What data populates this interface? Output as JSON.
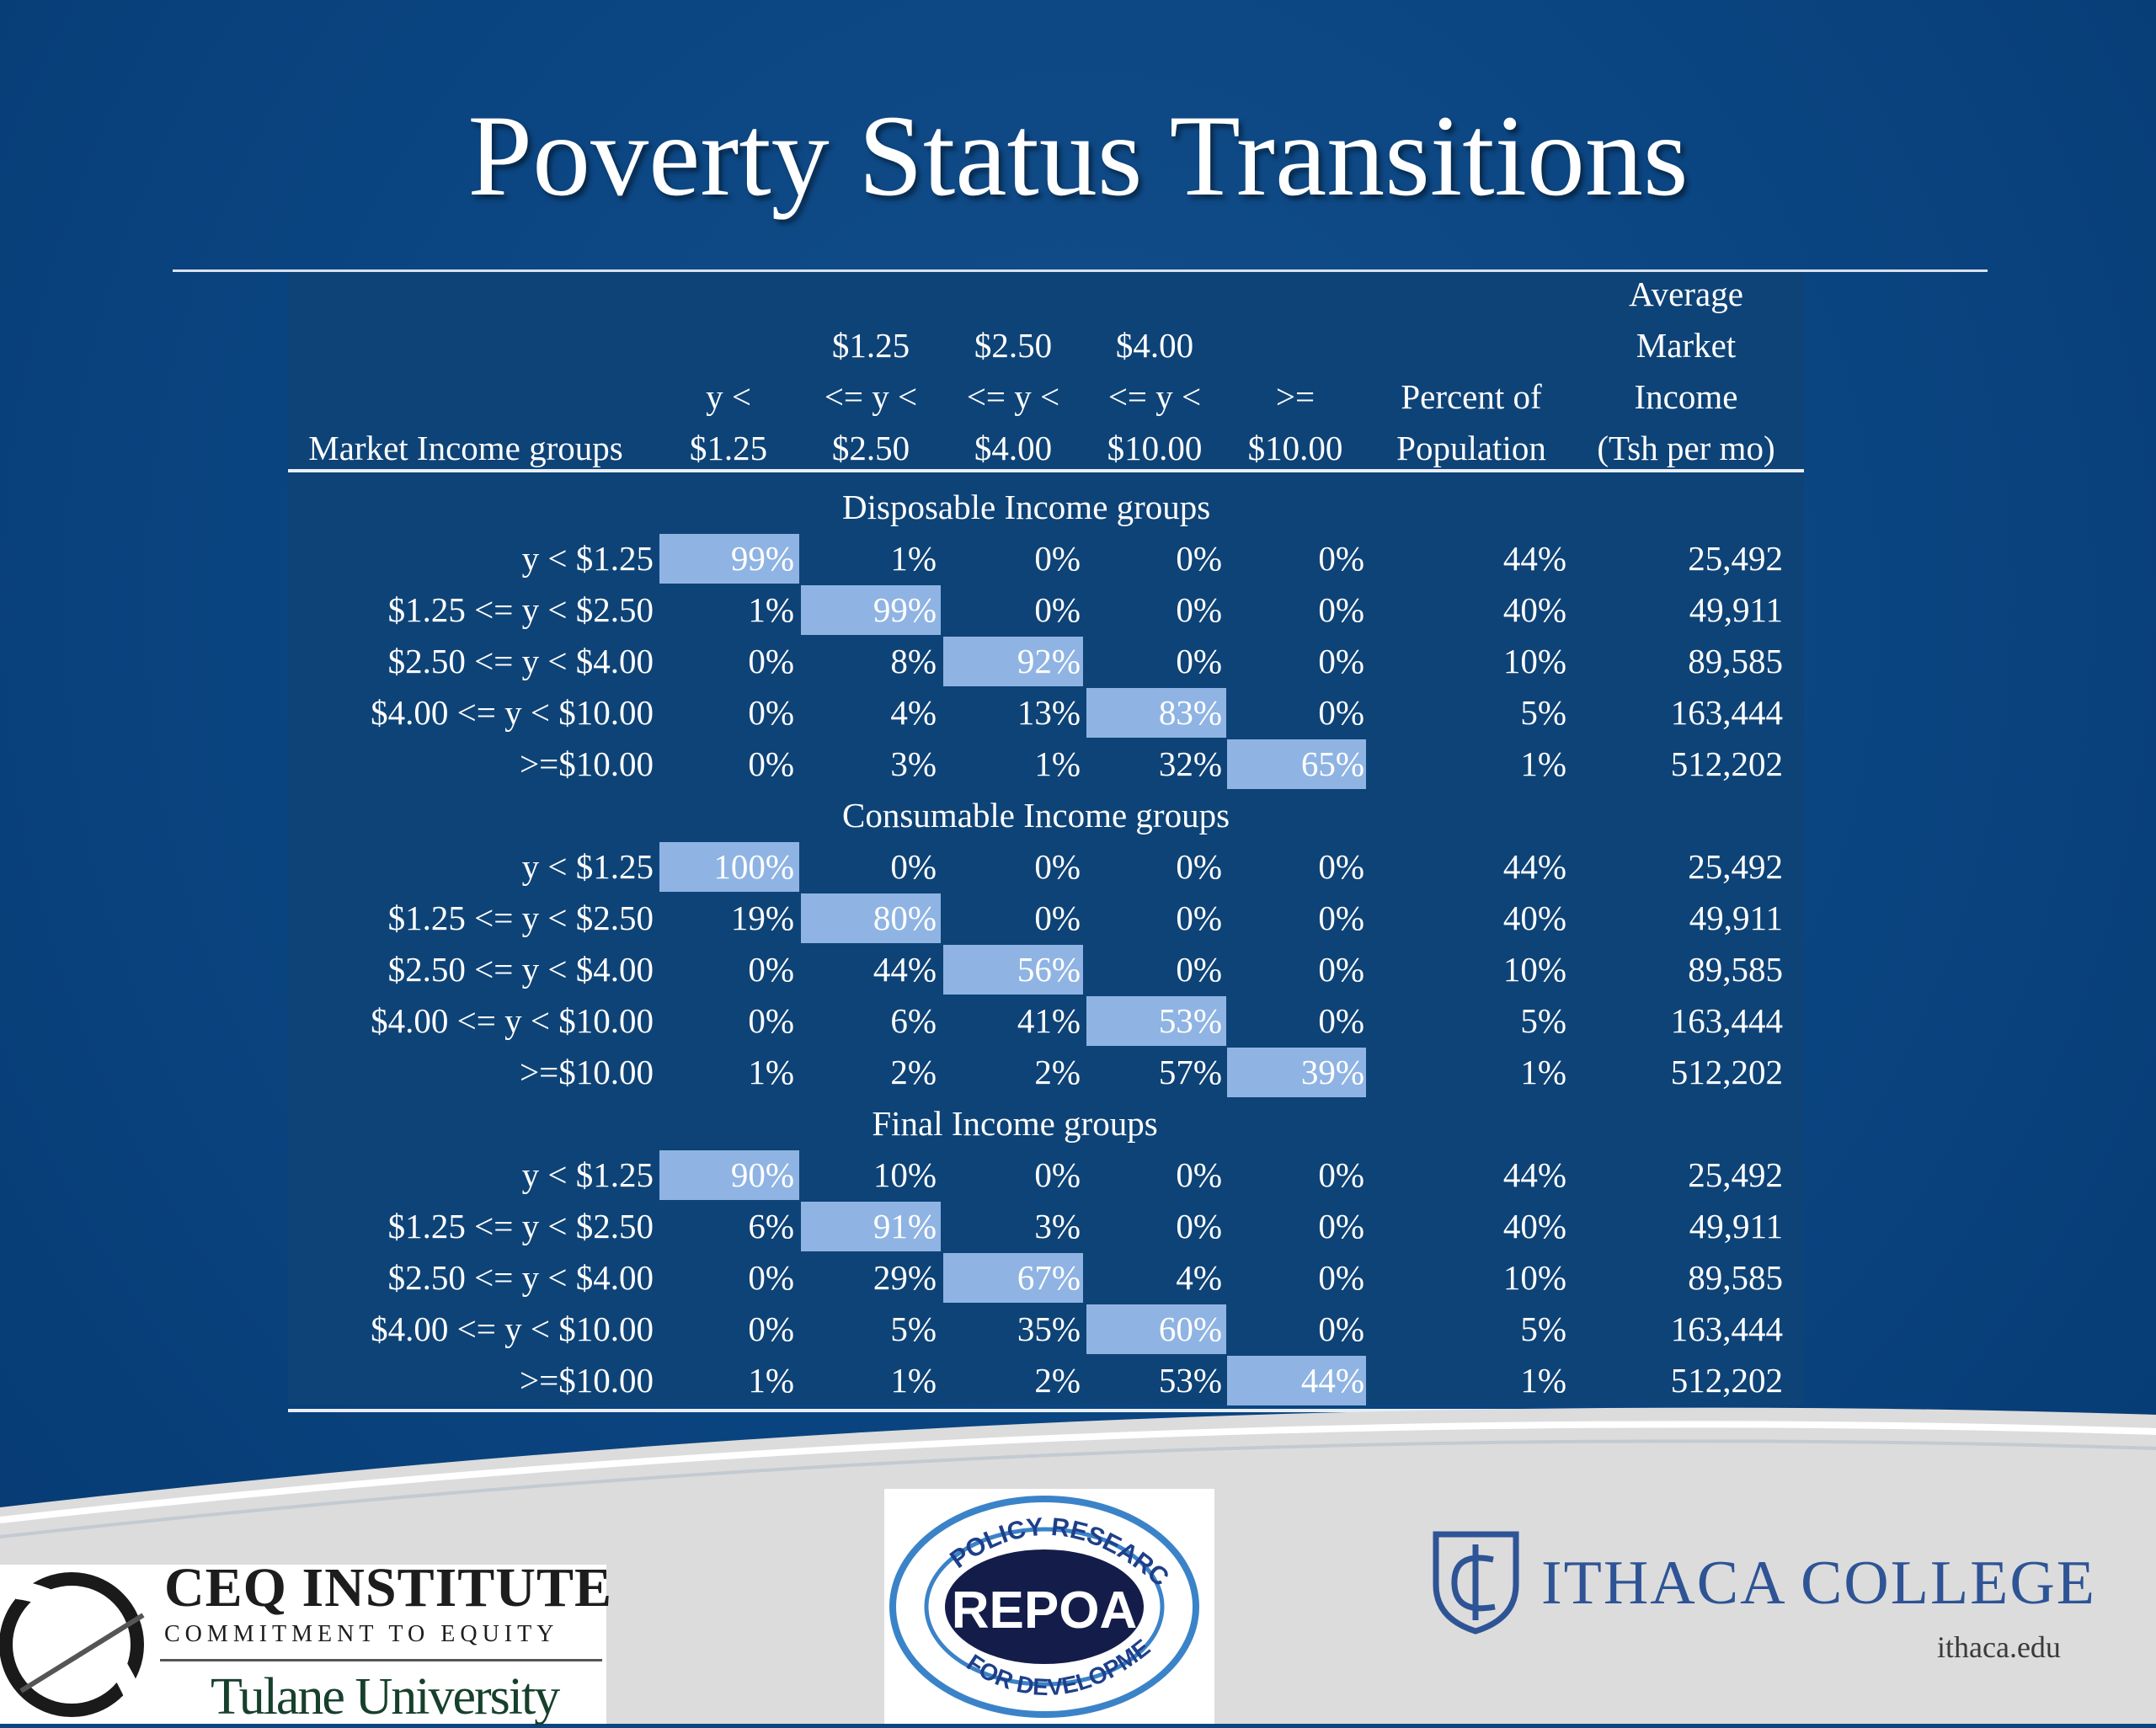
{
  "title": "Poverty Status Transitions",
  "colors": {
    "background": "#0b4681",
    "highlight": "#8fb4e3",
    "table_bg": "#0e4377"
  },
  "table": {
    "col_headers": [
      [
        "Market Income groups"
      ],
      [
        "y <",
        "$1.25"
      ],
      [
        "$1.25",
        "<= y <",
        "$2.50"
      ],
      [
        "$2.50",
        "<= y <",
        "$4.00"
      ],
      [
        "$4.00",
        "<= y <",
        "$10.00"
      ],
      [
        ">=",
        "$10.00"
      ],
      [
        "Percent of",
        "Population"
      ],
      [
        "Average",
        "Market",
        "Income",
        "(Tsh per mo)"
      ]
    ],
    "row_labels": [
      "y < $1.25",
      "$1.25 <= y < $2.50",
      "$2.50 <= y < $4.00",
      "$4.00 <= y < $10.00",
      ">=$10.00"
    ],
    "sections": [
      {
        "name": "Disposable Income groups",
        "rows": [
          [
            "99%",
            "1%",
            "0%",
            "0%",
            "0%",
            "44%",
            "25,492"
          ],
          [
            "1%",
            "99%",
            "0%",
            "0%",
            "0%",
            "40%",
            "49,911"
          ],
          [
            "0%",
            "8%",
            "92%",
            "0%",
            "0%",
            "10%",
            "89,585"
          ],
          [
            "0%",
            "4%",
            "13%",
            "83%",
            "0%",
            "5%",
            "163,444"
          ],
          [
            "0%",
            "3%",
            "1%",
            "32%",
            "65%",
            "1%",
            "512,202"
          ]
        ]
      },
      {
        "name": "Consumable Income groups",
        "rows": [
          [
            "100%",
            "0%",
            "0%",
            "0%",
            "0%",
            "44%",
            "25,492"
          ],
          [
            "19%",
            "80%",
            "0%",
            "0%",
            "0%",
            "40%",
            "49,911"
          ],
          [
            "0%",
            "44%",
            "56%",
            "0%",
            "0%",
            "10%",
            "89,585"
          ],
          [
            "0%",
            "6%",
            "41%",
            "53%",
            "0%",
            "5%",
            "163,444"
          ],
          [
            "1%",
            "2%",
            "2%",
            "57%",
            "39%",
            "1%",
            "512,202"
          ]
        ]
      },
      {
        "name": "Final Income groups",
        "rows": [
          [
            "90%",
            "10%",
            "0%",
            "0%",
            "0%",
            "44%",
            "25,492"
          ],
          [
            "6%",
            "91%",
            "3%",
            "0%",
            "0%",
            "40%",
            "49,911"
          ],
          [
            "0%",
            "29%",
            "67%",
            "4%",
            "0%",
            "10%",
            "89,585"
          ],
          [
            "0%",
            "5%",
            "35%",
            "60%",
            "0%",
            "5%",
            "163,444"
          ],
          [
            "1%",
            "1%",
            "2%",
            "53%",
            "44%",
            "1%",
            "512,202"
          ]
        ]
      }
    ]
  },
  "logos": {
    "ceq_name": "CEQ INSTITUTE",
    "ceq_sub": "COMMITMENT TO EQUITY",
    "tulane": "Tulane University",
    "repoa_name": "REPOA",
    "repoa_top": "POLICY RESEARCH",
    "repoa_bottom": "FOR DEVELOPMENT",
    "ithaca_name": "ITHACA COLLEGE",
    "ithaca_url": "ithaca.edu"
  }
}
